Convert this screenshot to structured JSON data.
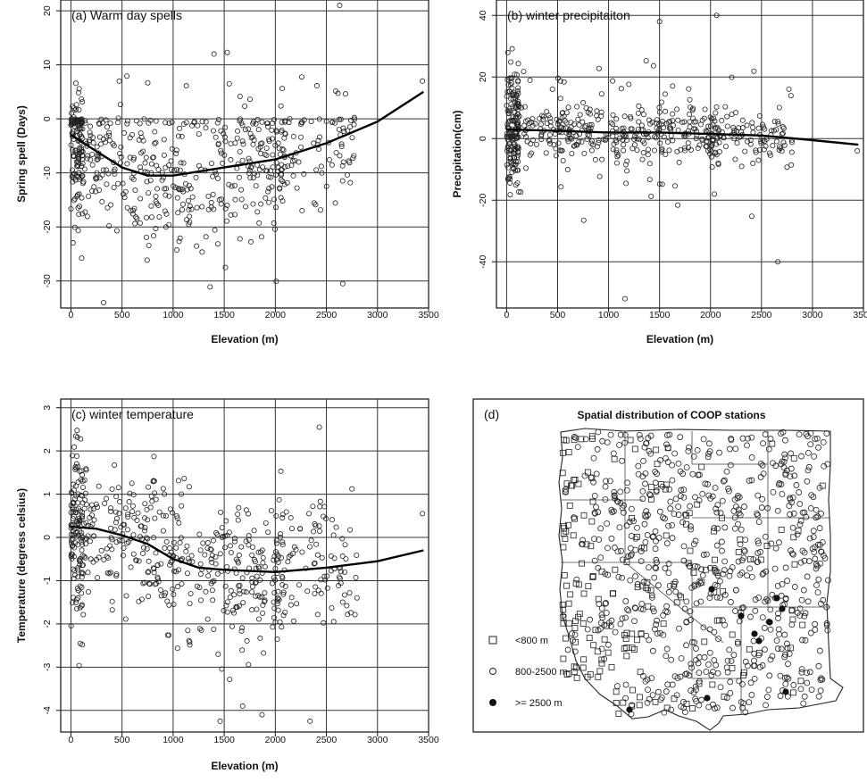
{
  "chart_data": [
    {
      "id": "a",
      "type": "scatter",
      "title": "(a) Warm day spells",
      "xlabel": "Elevation (m)",
      "ylabel": "Spring spell (Days)",
      "xlim": [
        -100,
        3500
      ],
      "ylim": [
        -35,
        22
      ],
      "xticks": [
        0,
        500,
        1000,
        1500,
        2000,
        2500,
        3000,
        3500
      ],
      "yticks": [
        -30,
        -20,
        -10,
        0,
        10,
        20
      ],
      "ytick_labels": [
        "-30",
        "-20",
        "-10",
        "0",
        "10",
        "20"
      ],
      "grid": true,
      "points_description": "dense scatter of station values",
      "trend": [
        [
          0,
          -3
        ],
        [
          250,
          -6
        ],
        [
          500,
          -9
        ],
        [
          750,
          -10.5
        ],
        [
          1000,
          -10.5
        ],
        [
          1500,
          -9
        ],
        [
          2000,
          -7.5
        ],
        [
          2500,
          -4.5
        ],
        [
          3000,
          -0.5
        ],
        [
          3450,
          5
        ]
      ],
      "outliers": [
        [
          2630,
          21
        ],
        [
          320,
          -34
        ],
        [
          2660,
          -30.5
        ],
        [
          1400,
          12
        ],
        [
          1530,
          12.3
        ],
        [
          3440,
          7
        ]
      ]
    },
    {
      "id": "b",
      "type": "scatter",
      "title": "(b) winter precipitaiton",
      "xlabel": "Elevation (m)",
      "ylabel": "Precipitation(cm)",
      "xlim": [
        -100,
        3500
      ],
      "ylim": [
        -55,
        45
      ],
      "xticks": [
        0,
        500,
        1000,
        1500,
        2000,
        2500,
        3000,
        3500
      ],
      "yticks": [
        -40,
        -20,
        0,
        20,
        40
      ],
      "ytick_labels": [
        "-40",
        "-20",
        "0",
        "20",
        "40"
      ],
      "grid": true,
      "trend": [
        [
          0,
          3
        ],
        [
          500,
          2.5
        ],
        [
          1000,
          2
        ],
        [
          1500,
          2
        ],
        [
          2000,
          1.5
        ],
        [
          2500,
          1
        ],
        [
          3000,
          -0.5
        ],
        [
          3450,
          -2
        ]
      ],
      "outliers": [
        [
          2060,
          40
        ],
        [
          1160,
          -52
        ],
        [
          2660,
          -40
        ],
        [
          1500,
          38
        ],
        [
          3440,
          -4
        ]
      ]
    },
    {
      "id": "c",
      "type": "scatter",
      "title": "(c) winter temperature",
      "xlabel": "Elevation (m)",
      "ylabel": "Temperature (degress celsius)",
      "xlim": [
        -100,
        3500
      ],
      "ylim": [
        -4.5,
        3.2
      ],
      "xticks": [
        0,
        500,
        1000,
        1500,
        2000,
        2500,
        3000,
        3500
      ],
      "yticks": [
        -4,
        -3,
        -2,
        -1,
        0,
        1,
        2,
        3
      ],
      "ytick_labels": [
        "-4",
        "-3",
        "-2",
        "-1",
        "0",
        "1",
        "2",
        "3"
      ],
      "grid": true,
      "trend": [
        [
          0,
          0.25
        ],
        [
          250,
          0.2
        ],
        [
          500,
          0.05
        ],
        [
          750,
          -0.15
        ],
        [
          1000,
          -0.5
        ],
        [
          1250,
          -0.7
        ],
        [
          1500,
          -0.75
        ],
        [
          2000,
          -0.8
        ],
        [
          2500,
          -0.7
        ],
        [
          3000,
          -0.55
        ],
        [
          3450,
          -0.3
        ]
      ],
      "outliers": [
        [
          2430,
          2.55
        ],
        [
          3440,
          0.55
        ],
        [
          1460,
          -4.25
        ],
        [
          2340,
          -4.25
        ],
        [
          1870,
          -4.1
        ],
        [
          1680,
          -3.9
        ]
      ]
    },
    {
      "id": "d",
      "type": "map",
      "title": "Spatial distribution of COOP stations",
      "panel_label": "(d)",
      "legend": [
        {
          "marker": "square",
          "label": "<800 m"
        },
        {
          "marker": "circle",
          "label": "800-2500 m"
        },
        {
          "marker": "filled-circle",
          "label": ">= 2500 m"
        }
      ]
    }
  ]
}
